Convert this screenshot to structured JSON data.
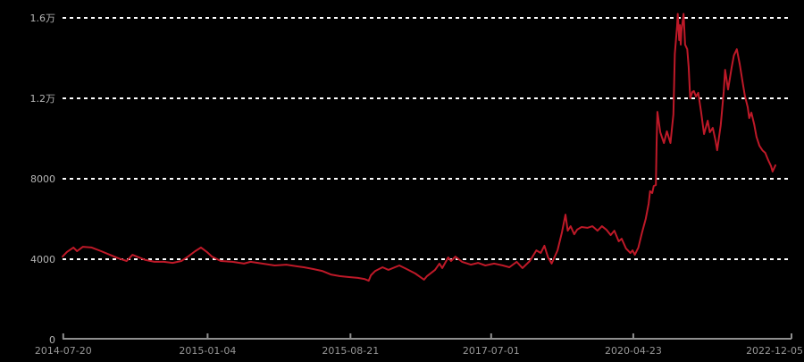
{
  "chart_data": {
    "type": "line",
    "title": "",
    "legend": "none",
    "grid": "horizontal-dotted",
    "ylim": [
      0,
      16000
    ],
    "x_range": [
      "2014-07-20",
      "2022-12-05"
    ],
    "y_ticks": [
      {
        "label": "0",
        "value": 0
      },
      {
        "label": "4000",
        "value": 4000
      },
      {
        "label": "8000",
        "value": 8000
      },
      {
        "label": "1.2万",
        "value": 12000
      },
      {
        "label": "1.6万",
        "value": 16000
      }
    ],
    "x_ticks": [
      {
        "label": "2014-07-20",
        "t": 0.001
      },
      {
        "label": "2015-01-04",
        "t": 0.199
      },
      {
        "label": "2015-08-21",
        "t": 0.395
      },
      {
        "label": "2017-07-01",
        "t": 0.588
      },
      {
        "label": "2020-04-23",
        "t": 0.783
      },
      {
        "label": "2022-12-05",
        "t": 1.0
      }
    ],
    "colors": {
      "background": "#000000",
      "line": "#be1928",
      "grid": "#ffffff",
      "axis": "#8f8f8f",
      "y_label": "#b5b5b5",
      "x_label": "#969696"
    },
    "points": [
      [
        0.0,
        4130
      ],
      [
        0.006,
        4360
      ],
      [
        0.015,
        4580
      ],
      [
        0.02,
        4400
      ],
      [
        0.028,
        4620
      ],
      [
        0.04,
        4580
      ],
      [
        0.053,
        4400
      ],
      [
        0.065,
        4220
      ],
      [
        0.077,
        4040
      ],
      [
        0.088,
        3910
      ],
      [
        0.096,
        4220
      ],
      [
        0.102,
        4130
      ],
      [
        0.114,
        3960
      ],
      [
        0.126,
        3870
      ],
      [
        0.139,
        3870
      ],
      [
        0.151,
        3820
      ],
      [
        0.163,
        3910
      ],
      [
        0.172,
        4130
      ],
      [
        0.182,
        4400
      ],
      [
        0.19,
        4580
      ],
      [
        0.198,
        4360
      ],
      [
        0.205,
        4130
      ],
      [
        0.217,
        3910
      ],
      [
        0.233,
        3870
      ],
      [
        0.249,
        3780
      ],
      [
        0.258,
        3870
      ],
      [
        0.274,
        3780
      ],
      [
        0.291,
        3690
      ],
      [
        0.307,
        3730
      ],
      [
        0.323,
        3640
      ],
      [
        0.331,
        3600
      ],
      [
        0.344,
        3510
      ],
      [
        0.356,
        3420
      ],
      [
        0.368,
        3240
      ],
      [
        0.38,
        3160
      ],
      [
        0.393,
        3110
      ],
      [
        0.405,
        3070
      ],
      [
        0.414,
        3020
      ],
      [
        0.42,
        2930
      ],
      [
        0.423,
        3200
      ],
      [
        0.429,
        3420
      ],
      [
        0.439,
        3600
      ],
      [
        0.447,
        3470
      ],
      [
        0.462,
        3690
      ],
      [
        0.472,
        3510
      ],
      [
        0.484,
        3290
      ],
      [
        0.496,
        2980
      ],
      [
        0.5,
        3160
      ],
      [
        0.511,
        3470
      ],
      [
        0.517,
        3780
      ],
      [
        0.521,
        3560
      ],
      [
        0.529,
        4090
      ],
      [
        0.533,
        3910
      ],
      [
        0.539,
        4130
      ],
      [
        0.548,
        3870
      ],
      [
        0.56,
        3730
      ],
      [
        0.57,
        3820
      ],
      [
        0.58,
        3690
      ],
      [
        0.592,
        3780
      ],
      [
        0.604,
        3690
      ],
      [
        0.613,
        3600
      ],
      [
        0.623,
        3870
      ],
      [
        0.631,
        3560
      ],
      [
        0.641,
        3910
      ],
      [
        0.65,
        4440
      ],
      [
        0.656,
        4310
      ],
      [
        0.661,
        4670
      ],
      [
        0.666,
        4090
      ],
      [
        0.671,
        3780
      ],
      [
        0.679,
        4440
      ],
      [
        0.685,
        5330
      ],
      [
        0.69,
        6220
      ],
      [
        0.693,
        5420
      ],
      [
        0.697,
        5640
      ],
      [
        0.702,
        5240
      ],
      [
        0.706,
        5470
      ],
      [
        0.712,
        5600
      ],
      [
        0.72,
        5560
      ],
      [
        0.727,
        5640
      ],
      [
        0.734,
        5420
      ],
      [
        0.74,
        5640
      ],
      [
        0.746,
        5470
      ],
      [
        0.752,
        5200
      ],
      [
        0.757,
        5420
      ],
      [
        0.763,
        4890
      ],
      [
        0.767,
        5020
      ],
      [
        0.773,
        4530
      ],
      [
        0.779,
        4310
      ],
      [
        0.782,
        4440
      ],
      [
        0.785,
        4220
      ],
      [
        0.79,
        4580
      ],
      [
        0.795,
        5330
      ],
      [
        0.8,
        6000
      ],
      [
        0.804,
        6760
      ],
      [
        0.806,
        7380
      ],
      [
        0.809,
        7290
      ],
      [
        0.811,
        7640
      ],
      [
        0.814,
        7690
      ],
      [
        0.815,
        9780
      ],
      [
        0.816,
        11330
      ],
      [
        0.82,
        10310
      ],
      [
        0.825,
        9780
      ],
      [
        0.829,
        10360
      ],
      [
        0.834,
        9780
      ],
      [
        0.838,
        11200
      ],
      [
        0.839,
        12670
      ],
      [
        0.84,
        14220
      ],
      [
        0.843,
        15560
      ],
      [
        0.844,
        16200
      ],
      [
        0.846,
        14890
      ],
      [
        0.847,
        15640
      ],
      [
        0.848,
        14670
      ],
      [
        0.849,
        15330
      ],
      [
        0.852,
        16200
      ],
      [
        0.854,
        14670
      ],
      [
        0.857,
        14440
      ],
      [
        0.859,
        13560
      ],
      [
        0.861,
        12000
      ],
      [
        0.864,
        12310
      ],
      [
        0.866,
        12360
      ],
      [
        0.869,
        12090
      ],
      [
        0.872,
        12270
      ],
      [
        0.876,
        11330
      ],
      [
        0.88,
        10220
      ],
      [
        0.885,
        10890
      ],
      [
        0.888,
        10310
      ],
      [
        0.892,
        10530
      ],
      [
        0.896,
        9870
      ],
      [
        0.898,
        9420
      ],
      [
        0.903,
        10670
      ],
      [
        0.907,
        12310
      ],
      [
        0.909,
        13420
      ],
      [
        0.913,
        12440
      ],
      [
        0.918,
        13560
      ],
      [
        0.921,
        14130
      ],
      [
        0.925,
        14440
      ],
      [
        0.929,
        13690
      ],
      [
        0.933,
        12800
      ],
      [
        0.936,
        12130
      ],
      [
        0.94,
        11560
      ],
      [
        0.942,
        11020
      ],
      [
        0.945,
        11290
      ],
      [
        0.949,
        10670
      ],
      [
        0.952,
        10090
      ],
      [
        0.956,
        9640
      ],
      [
        0.96,
        9420
      ],
      [
        0.964,
        9290
      ],
      [
        0.968,
        8930
      ],
      [
        0.972,
        8620
      ],
      [
        0.974,
        8360
      ],
      [
        0.978,
        8670
      ]
    ]
  }
}
